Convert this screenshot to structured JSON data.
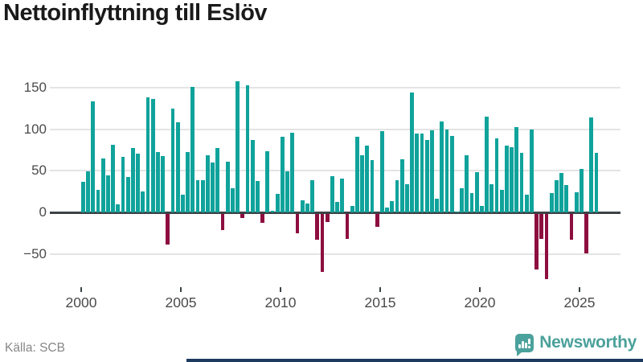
{
  "title": "Nettoinflyttning till Eslöv",
  "source": "Källa: SCB",
  "brand": {
    "name": "Newsworthy"
  },
  "colors": {
    "positive": "#10a39b",
    "negative": "#8d0e3f",
    "axis": "#3c4347",
    "gridline": "#e4e4e4",
    "tick_label": "#4b4b4b",
    "title": "#1a1a1a",
    "source": "#878787",
    "brand": "#4ba19b",
    "footer_strip": "#1d3a5f"
  },
  "chart_data": {
    "type": "bar",
    "title": "Nettoinflyttning till Eslöv",
    "frequency": "quarterly",
    "start_period": "2000-Q1",
    "end_period": "2025-Q4",
    "xlabel": "",
    "ylabel": "",
    "ylim": [
      -85,
      165
    ],
    "grid": "horizontal",
    "legend": "none",
    "y_ticks": [
      150,
      100,
      50,
      0,
      -50
    ],
    "y_tick_labels": [
      "150",
      "100",
      "50",
      "0",
      "−50"
    ],
    "x_tick_labels": [
      "2000",
      "2005",
      "2010",
      "2015",
      "2020",
      "2025"
    ],
    "series": [
      {
        "name": "Nettoinflyttning",
        "values": [
          37,
          49,
          134,
          27,
          65,
          45,
          81,
          10,
          67,
          43,
          77,
          71,
          25,
          138,
          136,
          73,
          68,
          -37,
          125,
          108,
          21,
          73,
          151,
          39,
          39,
          69,
          60,
          77,
          -20,
          61,
          29,
          158,
          -5,
          153,
          87,
          38,
          -11,
          74,
          2,
          22,
          91,
          49,
          96,
          -24,
          15,
          11,
          39,
          -31,
          -70,
          -10,
          44,
          13,
          41,
          -30,
          8,
          91,
          69,
          80,
          63,
          -16,
          98,
          6,
          14,
          39,
          64,
          34,
          144,
          95,
          95,
          87,
          99,
          16,
          109,
          100,
          92,
          1,
          29,
          69,
          23,
          48,
          8,
          115,
          34,
          89,
          27,
          80,
          78,
          103,
          72,
          21,
          100,
          -67,
          -30,
          -79,
          23,
          39,
          47,
          33,
          -31,
          24,
          52,
          -48,
          114,
          72
        ]
      }
    ]
  }
}
